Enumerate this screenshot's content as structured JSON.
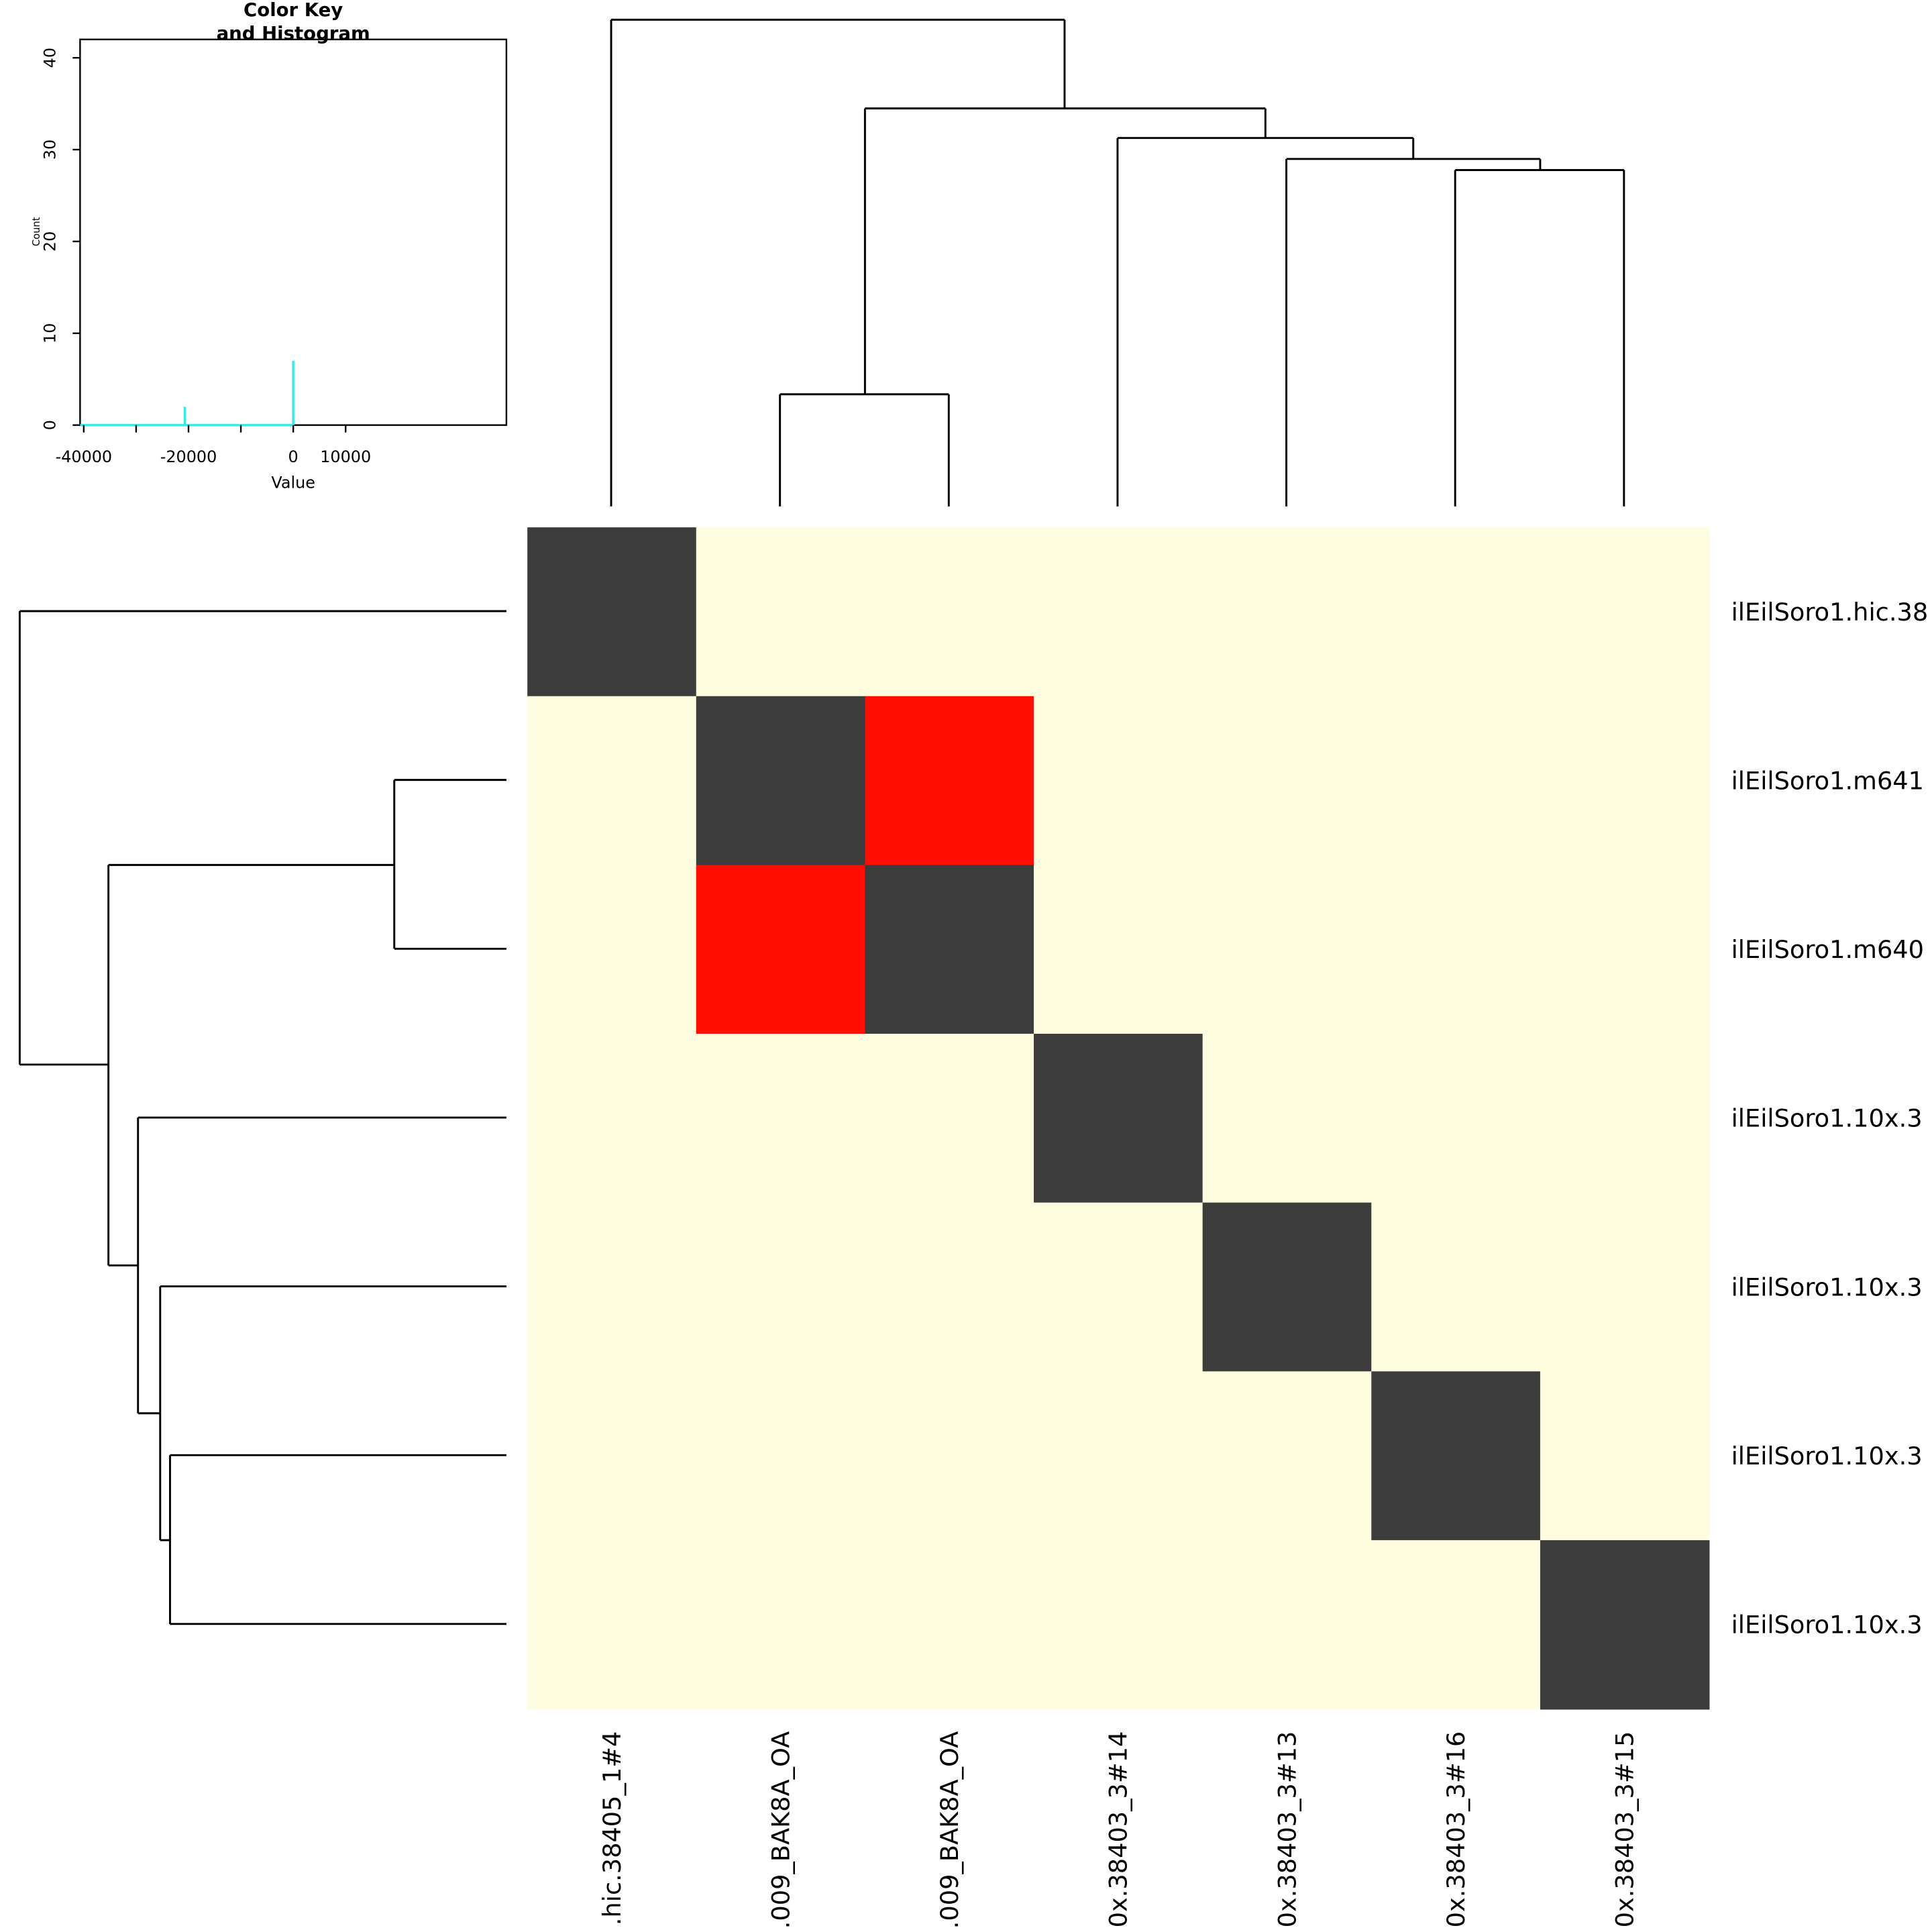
{
  "chart_data": [
    {
      "type": "heatmap",
      "x_labels": [
        ".hic.38405_1#4",
        ".009_BAK8A_OA",
        ".009_BAK8A_OA",
        "0x.38403_3#14",
        "0x.38403_3#13",
        "0x.38403_3#16",
        "0x.38403_3#15"
      ],
      "y_labels": [
        "ilEilSoro1.hic.38",
        "ilEilSoro1.m641",
        "ilEilSoro1.m640",
        "ilEilSoro1.10x.3",
        "ilEilSoro1.10x.3",
        "ilEilSoro1.10x.3",
        "ilEilSoro1.10x.3"
      ],
      "values": [
        [
          0,
          40000,
          40000,
          40000,
          40000,
          40000,
          40000
        ],
        [
          40000,
          0,
          -20700,
          40000,
          40000,
          40000,
          40000
        ],
        [
          40000,
          -20700,
          0,
          40000,
          40000,
          40000,
          40000
        ],
        [
          40000,
          40000,
          40000,
          0,
          40000,
          40000,
          40000
        ],
        [
          40000,
          40000,
          40000,
          40000,
          0,
          40000,
          40000
        ],
        [
          40000,
          40000,
          40000,
          40000,
          40000,
          0,
          40000
        ],
        [
          40000,
          40000,
          40000,
          40000,
          40000,
          40000,
          0
        ]
      ],
      "color_levels": [
        {
          "value": -20700,
          "color": "#ff0d00"
        },
        {
          "value": 0,
          "color": "#3c3c3c"
        },
        {
          "value": 40000,
          "color": "#fffde0"
        }
      ]
    },
    {
      "type": "bar",
      "title": [
        "Color Key",
        "and Histogram"
      ],
      "x_label": "Value",
      "y_label": "Count",
      "x": [
        -20700,
        0
      ],
      "values": [
        2,
        7
      ],
      "color": "#40e8e8",
      "xlim": [
        -40700,
        40700
      ],
      "ylim": [
        0,
        42
      ],
      "xticks": [
        {
          "value": -40000,
          "label": "-40000"
        },
        {
          "value": -30000,
          "label": null
        },
        {
          "value": -20000,
          "label": "-20000"
        },
        {
          "value": -10000,
          "label": null
        },
        0,
        10000
      ],
      "yticks": [
        0,
        10,
        20,
        30,
        40
      ]
    }
  ]
}
